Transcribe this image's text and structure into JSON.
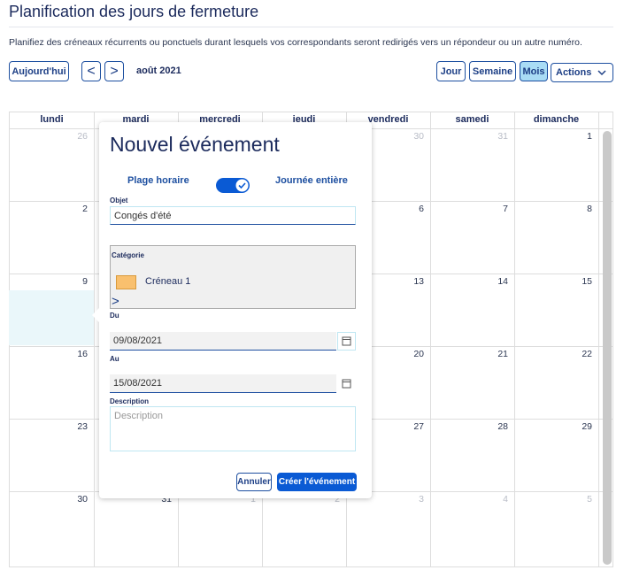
{
  "header": {
    "title": "Planification des jours de fermeture",
    "description": "Planifiez des créneaux récurrents ou ponctuels durant lesquels vos correspondants seront redirigés vers un répondeur ou un autre numéro."
  },
  "toolbar": {
    "today": "Aujourd'hui",
    "prev": "<",
    "next": ">",
    "period": "août 2021",
    "views": [
      "Jour",
      "Semaine",
      "Mois"
    ],
    "actions": "Actions"
  },
  "calendar": {
    "weekdays": [
      "lundi",
      "mardi",
      "mercredi",
      "jeudi",
      "vendredi",
      "samedi",
      "dimanche"
    ],
    "weeks": [
      [
        26,
        null,
        null,
        null,
        30,
        31,
        1
      ],
      [
        2,
        null,
        null,
        null,
        6,
        7,
        8
      ],
      [
        9,
        null,
        null,
        null,
        13,
        14,
        15
      ],
      [
        16,
        null,
        null,
        null,
        20,
        21,
        22
      ],
      [
        23,
        null,
        null,
        null,
        27,
        28,
        29
      ],
      [
        30,
        31,
        1,
        2,
        3,
        4,
        5
      ]
    ]
  },
  "dialog": {
    "title": "Nouvel événement",
    "mode_left": "Plage horaire",
    "mode_right": "Journée entière",
    "subject_label": "Objet",
    "subject_value": "Congés d'été",
    "category_label": "Catégorie",
    "category_value": "Créneau 1",
    "category_more": ">",
    "from_label": "Du",
    "from_value": "09/08/2021",
    "to_label": "Au",
    "to_value": "15/08/2021",
    "description_label": "Description",
    "description_placeholder": "Description",
    "cancel": "Annuler",
    "create": "Créer l'événement"
  }
}
